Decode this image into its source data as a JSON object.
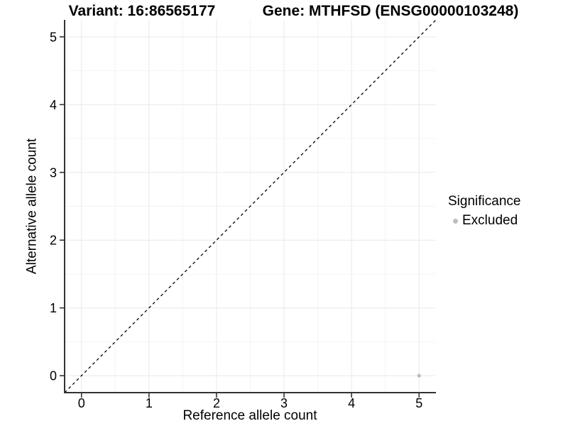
{
  "titles": {
    "variant": "Variant: 16:86565177",
    "gene": "Gene: MTHFSD (ENSG00000103248)"
  },
  "chart_data": {
    "type": "scatter",
    "title_left": "Variant: 16:86565177",
    "title_right": "Gene: MTHFSD (ENSG00000103248)",
    "xlabel": "Reference allele count",
    "ylabel": "Alternative allele count",
    "xlim": [
      -0.25,
      5.25
    ],
    "ylim": [
      -0.25,
      5.25
    ],
    "xticks": [
      0,
      1,
      2,
      3,
      4,
      5
    ],
    "yticks": [
      0,
      1,
      2,
      3,
      4,
      5
    ],
    "grid": "major and minor gridlines, light gray, on white background",
    "points": [
      {
        "x": 5,
        "y": 0,
        "series": "Excluded"
      }
    ],
    "series": [
      {
        "name": "Excluded",
        "color": "#bebebe"
      }
    ],
    "reference_line": {
      "slope": 1,
      "intercept": 0,
      "style": "dashed",
      "color": "#000000"
    },
    "legend": {
      "title": "Significance",
      "position": "right",
      "items": [
        {
          "label": "Excluded",
          "color": "#bebebe"
        }
      ]
    }
  },
  "colors": {
    "background": "#ffffff",
    "grid_major": "#e9e9e9",
    "grid_minor": "#f4f4f4",
    "axis_line": "#333333",
    "point": "#bebebe",
    "text": "#000000"
  }
}
